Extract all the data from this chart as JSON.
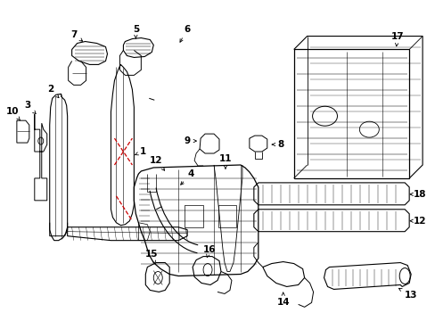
{
  "background_color": "#ffffff",
  "line_color": "#000000",
  "red_color": "#cc0000",
  "label_fontsize": 7.5,
  "fig_width": 4.89,
  "fig_height": 3.6,
  "dpi": 100
}
